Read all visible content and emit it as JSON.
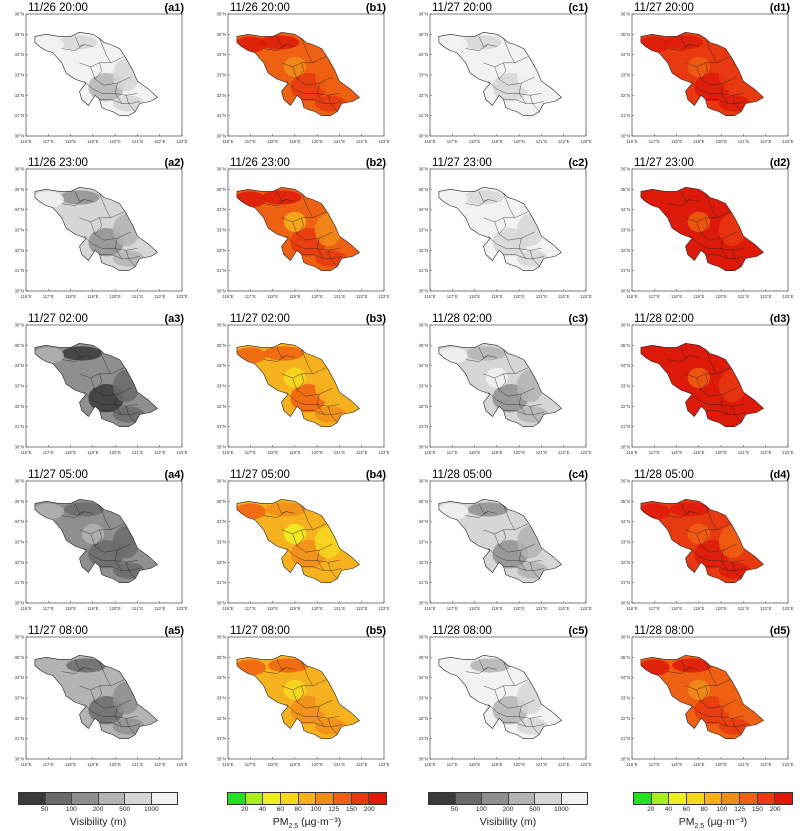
{
  "axes": {
    "lon_ticks": [
      "116°E",
      "117°E",
      "118°E",
      "119°E",
      "120°E",
      "121°E",
      "122°E",
      "123°E"
    ],
    "lat_ticks": [
      "36°N",
      "35°N",
      "34°N",
      "33°N",
      "32°N",
      "31°N",
      "30°N"
    ]
  },
  "columns": [
    {
      "id": "a",
      "variable": "visibility",
      "panels": [
        {
          "label": "(a1)",
          "time": "11/26 20:00",
          "level": 0.15
        },
        {
          "label": "(a2)",
          "time": "11/26 23:00",
          "level": 0.35
        },
        {
          "label": "(a3)",
          "time": "11/27 02:00",
          "level": 0.7
        },
        {
          "label": "(a4)",
          "time": "11/27 05:00",
          "level": 0.6
        },
        {
          "label": "(a5)",
          "time": "11/27 08:00",
          "level": 0.55
        }
      ]
    },
    {
      "id": "b",
      "variable": "pm25",
      "panels": [
        {
          "label": "(b1)",
          "time": "11/26 20:00",
          "level": 0.75
        },
        {
          "label": "(b2)",
          "time": "11/26 23:00",
          "level": 0.7
        },
        {
          "label": "(b3)",
          "time": "11/27 02:00",
          "level": 0.55
        },
        {
          "label": "(b4)",
          "time": "11/27 05:00",
          "level": 0.45
        },
        {
          "label": "(b5)",
          "time": "11/27 08:00",
          "level": 0.5
        }
      ]
    },
    {
      "id": "c",
      "variable": "visibility",
      "panels": [
        {
          "label": "(c1)",
          "time": "11/27 20:00",
          "level": 0.05
        },
        {
          "label": "(c2)",
          "time": "11/27 23:00",
          "level": 0.12
        },
        {
          "label": "(c3)",
          "time": "11/28 02:00",
          "level": 0.3
        },
        {
          "label": "(c4)",
          "time": "11/28 05:00",
          "level": 0.35
        },
        {
          "label": "(c5)",
          "time": "11/28 08:00",
          "level": 0.2
        }
      ]
    },
    {
      "id": "d",
      "variable": "pm25",
      "panels": [
        {
          "label": "(d1)",
          "time": "11/27 20:00",
          "level": 0.88
        },
        {
          "label": "(d2)",
          "time": "11/27 23:00",
          "level": 0.92
        },
        {
          "label": "(d3)",
          "time": "11/28 02:00",
          "level": 0.9
        },
        {
          "label": "(d4)",
          "time": "11/28 05:00",
          "level": 0.82
        },
        {
          "label": "(d5)",
          "time": "11/28 08:00",
          "level": 0.72
        }
      ]
    }
  ],
  "legends": {
    "visibility": {
      "title": "Visibility (m)",
      "ticks": [
        "50",
        "100",
        "200",
        "500",
        "1000"
      ],
      "colors": [
        "#3a3a3a",
        "#6b6b6b",
        "#8f8f8f",
        "#b3b3b3",
        "#d6d6d6",
        "#f2f2f2"
      ]
    },
    "pm25": {
      "title_main": "PM",
      "title_sub": "2.5",
      "title_unit": " (µg·m⁻³)",
      "ticks": [
        "20",
        "40",
        "60",
        "80",
        "100",
        "125",
        "150",
        "200"
      ],
      "colors": [
        "#22e022",
        "#aaee22",
        "#eeee22",
        "#f5d81e",
        "#f5b21e",
        "#f08c1a",
        "#ee6012",
        "#e83a10",
        "#dd1a0a"
      ]
    }
  }
}
